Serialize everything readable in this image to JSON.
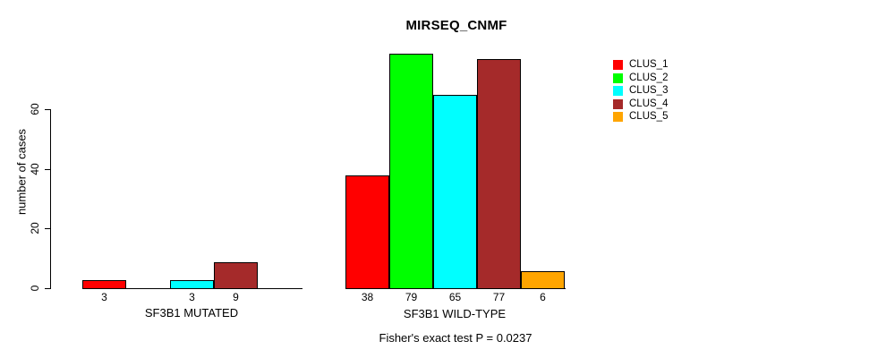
{
  "chart_data": {
    "type": "bar",
    "title": "MIRSEQ_CNMF",
    "ylabel": "number of cases",
    "xlabel": "",
    "groups": [
      "SF3B1 MUTATED",
      "SF3B1 WILD-TYPE"
    ],
    "series": [
      {
        "name": "CLUS_1",
        "color": "#FF0000",
        "values": [
          3,
          38
        ]
      },
      {
        "name": "CLUS_2",
        "color": "#00FF00",
        "values": [
          0,
          79
        ]
      },
      {
        "name": "CLUS_3",
        "color": "#00FFFF",
        "values": [
          3,
          65
        ]
      },
      {
        "name": "CLUS_4",
        "color": "#A52A2A",
        "values": [
          9,
          77
        ]
      },
      {
        "name": "CLUS_5",
        "color": "#FFA500",
        "values": [
          0,
          6
        ]
      }
    ],
    "y_ticks": [
      0,
      20,
      40,
      60
    ],
    "ylim": [
      0,
      80
    ],
    "bar_value_labels": {
      "note": "value printed under each nonzero bar",
      "SF3B1 MUTATED": [
        3,
        0,
        3,
        9,
        0
      ],
      "SF3B1 WILD-TYPE": [
        38,
        79,
        65,
        77,
        6
      ]
    },
    "annotation": "Fisher's exact test P = 0.0237",
    "legend_position": "right",
    "legend_border": false,
    "grid": false,
    "axis_color": "#000000",
    "background_color": "#FFFFFF"
  }
}
